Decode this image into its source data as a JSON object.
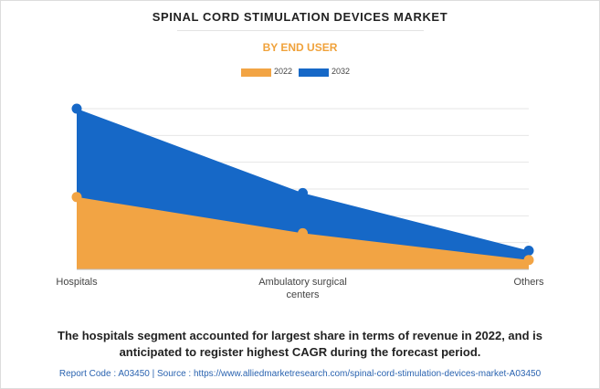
{
  "title": "SPINAL CORD STIMULATION DEVICES MARKET",
  "subtitle": "BY END USER",
  "footnote": {
    "line1": "The hospitals segment accounted for largest share in terms of revenue in 2022, and is",
    "line2": "anticipated to register highest CAGR during the forecast period."
  },
  "source_line": "Report Code : A03450  |  Source : https://www.alliedmarketresearch.com/spinal-cord-stimulation-devices-market-A03450",
  "colors": {
    "series_2022": "#f2a444",
    "series_2032": "#1668c7",
    "grid": "#e6e6e6",
    "axis": "#bdbdbd"
  },
  "chart_data": {
    "type": "area",
    "title": "SPINAL CORD STIMULATION DEVICES MARKET",
    "subtitle": "BY END USER",
    "x_axis_label_lines": [
      [
        "Hospitals"
      ],
      [
        "Ambulatory surgical",
        "centers"
      ],
      [
        "Others"
      ]
    ],
    "categories": [
      "Hospitals",
      "Ambulatory surgical centers",
      "Others"
    ],
    "ylim": [
      0,
      6
    ],
    "grid": true,
    "legend_position": "top-center",
    "series": [
      {
        "name": "2022",
        "color": "#f2a444",
        "values": [
          2.7,
          1.35,
          0.35
        ]
      },
      {
        "name": "2032",
        "color": "#1668c7",
        "values": [
          6.0,
          2.85,
          0.7
        ]
      }
    ]
  }
}
